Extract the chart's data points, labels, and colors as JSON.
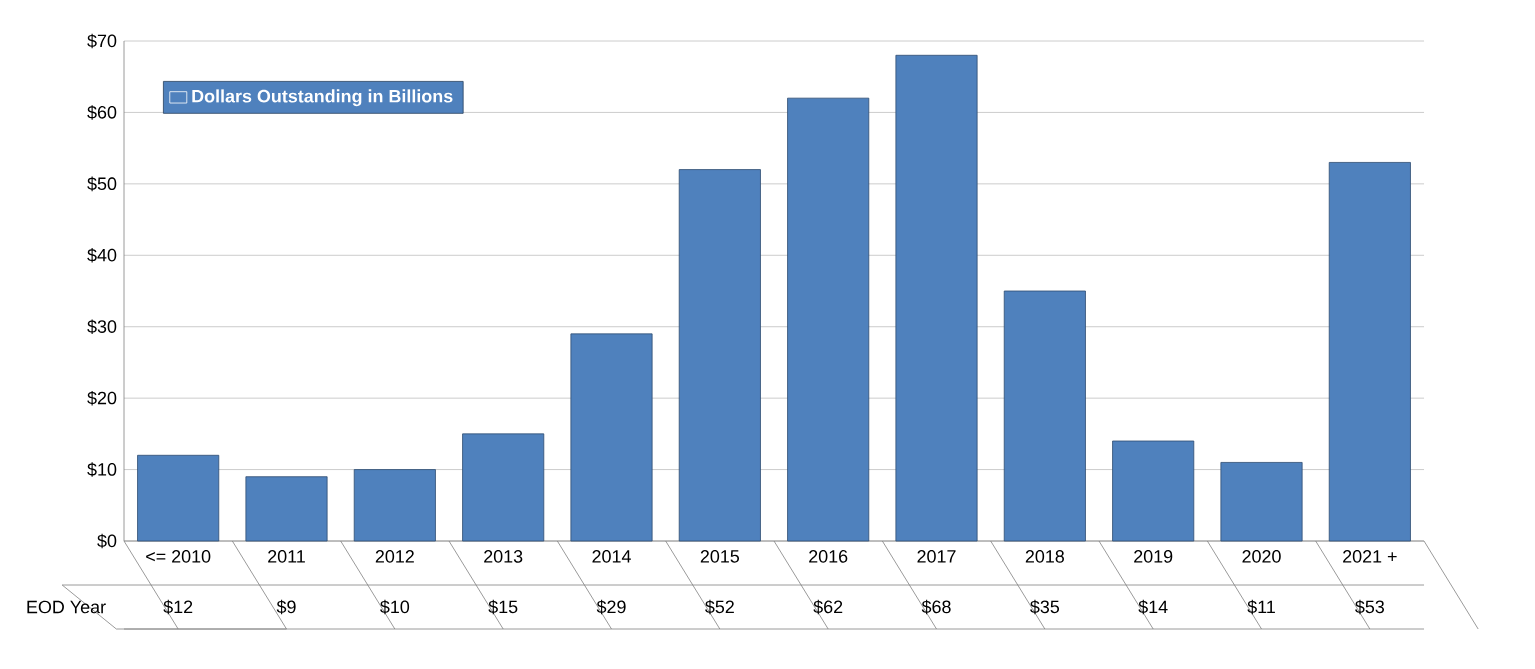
{
  "chart_data": {
    "type": "bar",
    "categories": [
      "<= 2010",
      "2011",
      "2012",
      "2013",
      "2014",
      "2015",
      "2016",
      "2017",
      "2018",
      "2019",
      "2020",
      "2021 +"
    ],
    "series": [
      {
        "name": "Dollars Outstanding in Billions",
        "color": "#4f81bd",
        "values": [
          12,
          9,
          10,
          15,
          29,
          52,
          62,
          68,
          35,
          14,
          11,
          53
        ],
        "value_labels": [
          "$12",
          "$9",
          "$10",
          "$15",
          "$29",
          "$52",
          "$62",
          "$68",
          "$35",
          "$14",
          "$11",
          "$53"
        ]
      }
    ],
    "xlabel": "EOD Year",
    "ylim": [
      0,
      70
    ],
    "yticks": [
      {
        "value": 0,
        "label": "$0"
      },
      {
        "value": 10,
        "label": "$10"
      },
      {
        "value": 20,
        "label": "$20"
      },
      {
        "value": 30,
        "label": "$30"
      },
      {
        "value": 40,
        "label": "$40"
      },
      {
        "value": 50,
        "label": "$50"
      },
      {
        "value": 60,
        "label": "$60"
      },
      {
        "value": 70,
        "label": "$70"
      }
    ],
    "grid": "y",
    "legend": "top left"
  }
}
